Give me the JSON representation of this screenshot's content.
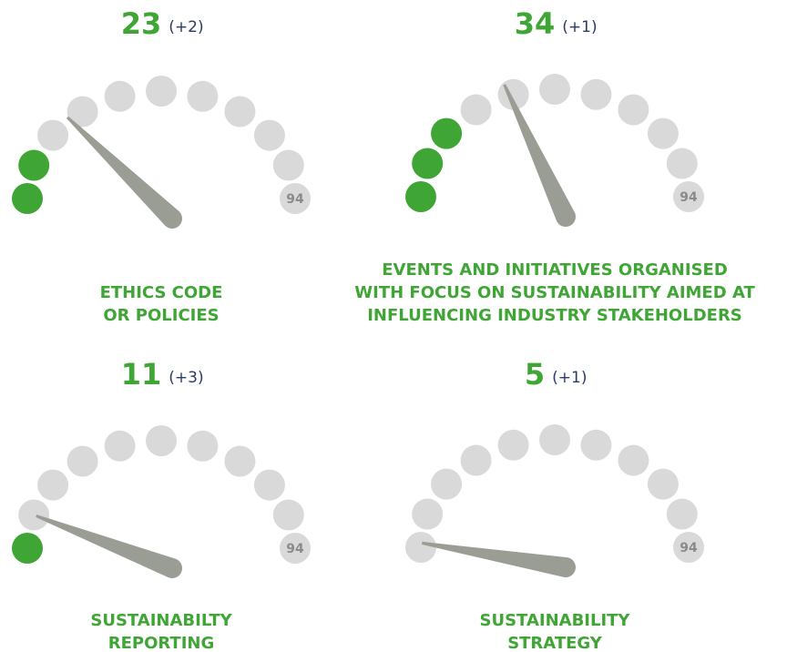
{
  "chart_data": [
    {
      "type": "gauge",
      "value": 23,
      "annotation": "(+2)",
      "ylim": [
        0,
        94
      ],
      "title": [
        "ETHICS CODE",
        "OR POLICIES"
      ]
    },
    {
      "type": "gauge",
      "value": 34,
      "annotation": "(+1)",
      "ylim": [
        0,
        94
      ],
      "title": [
        "EVENTS AND INITIATIVES ORGANISED",
        "WITH FOCUS ON SUSTAINABILITY AIMED AT",
        "INFLUENCING INDUSTRY STAKEHOLDERS"
      ]
    },
    {
      "type": "gauge",
      "value": 11,
      "annotation": "(+3)",
      "ylim": [
        0,
        94
      ],
      "title": [
        "SUSTAINABILTY",
        "REPORTING"
      ]
    },
    {
      "type": "gauge",
      "value": 5,
      "annotation": "(+1)",
      "ylim": [
        0,
        94
      ],
      "title": [
        "SUSTAINABILITY",
        "STRATEGY"
      ]
    }
  ]
}
